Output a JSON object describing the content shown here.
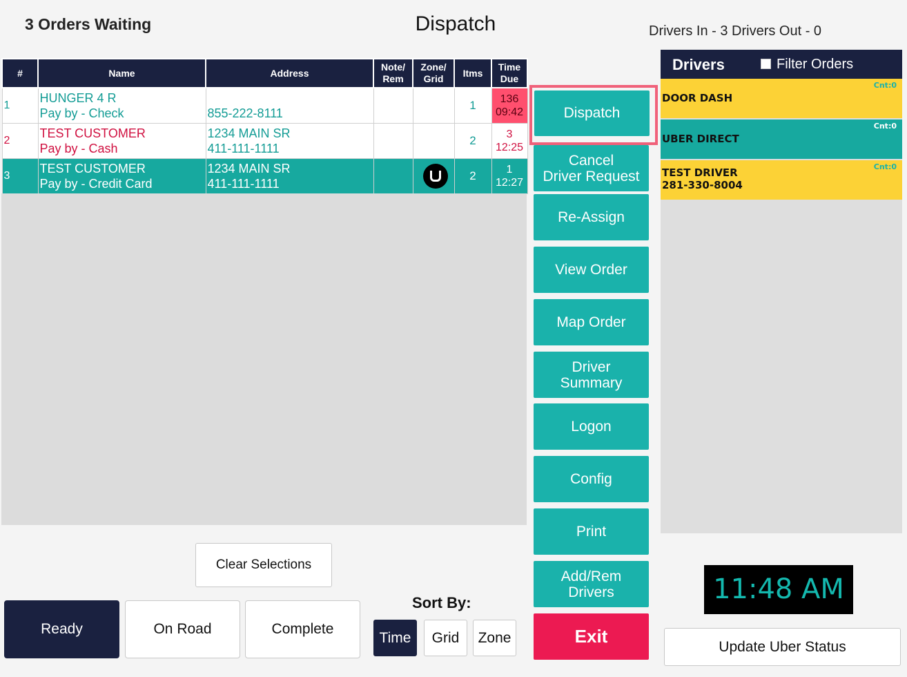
{
  "header": {
    "orders_waiting": "3 Orders Waiting",
    "title": "Dispatch",
    "drivers_count": "Drivers In - 3   Drivers Out - 0"
  },
  "table": {
    "columns": [
      "#",
      "Name",
      "Address",
      "Note/ Rem",
      "Zone/ Grid",
      "Itms",
      "Time Due"
    ],
    "columns_split": {
      "note": [
        "Note/",
        "Rem"
      ],
      "zone": [
        "Zone/",
        "Grid"
      ],
      "time": [
        "Time",
        "Due"
      ]
    },
    "rows": [
      {
        "num": "1",
        "name": "HUNGER 4 R",
        "pay": "Pay by - Check",
        "address": "",
        "phone": "855-222-8111",
        "note": "",
        "zone": "",
        "items": "1",
        "time_top": "136",
        "time_bottom": "09:42"
      },
      {
        "num": "2",
        "name": "TEST CUSTOMER",
        "pay": "Pay by - Cash",
        "address": "1234 MAIN SR",
        "phone": "411-111-1111",
        "note": "",
        "zone": "",
        "items": "2",
        "time_top": "3",
        "time_bottom": "12:25"
      },
      {
        "num": "3",
        "name": "TEST CUSTOMER",
        "pay": "Pay by - Credit Card",
        "address": "1234 MAIN SR",
        "phone": "411-111-1111",
        "note": "",
        "zone_icon": "uber-icon",
        "items": "2",
        "time_top": "1",
        "time_bottom": "12:27"
      }
    ]
  },
  "actions": {
    "dispatch": "Dispatch",
    "cancel_request": [
      "Cancel",
      "Driver Request"
    ],
    "reassign": "Re-Assign",
    "view_order": "View Order",
    "map_order": "Map Order",
    "driver_summary": [
      "Driver",
      "Summary"
    ],
    "logon": "Logon",
    "config": "Config",
    "print": "Print",
    "add_rem_drivers": [
      "Add/Rem",
      "Drivers"
    ],
    "exit": "Exit"
  },
  "drivers": {
    "title": "Drivers",
    "filter_label": "Filter Orders",
    "filter_checked": false,
    "list": [
      {
        "name": "DOOR DASH",
        "phone": "",
        "count": "Cnt:0",
        "color": "#fcd236"
      },
      {
        "name": "UBER DIRECT",
        "phone": "",
        "count": "Cnt:0",
        "color": "#17a99f"
      },
      {
        "name": "TEST DRIVER",
        "phone": "281-330-8004",
        "count": "Cnt:0",
        "color": "#fcd236"
      }
    ]
  },
  "clock": "11:48 AM",
  "update_uber": "Update Uber Status",
  "bottom": {
    "clear": "Clear Selections",
    "ready": "Ready",
    "on_road": "On Road",
    "complete": "Complete",
    "sort_by": "Sort By:",
    "sort_time": "Time",
    "sort_grid": "Grid",
    "sort_zone": "Zone",
    "selected_sort": "Time",
    "selected_status": "Ready"
  },
  "colors": {
    "navy": "#1a2140",
    "teal": "#1ab2ab",
    "exit_red": "#ec1a52",
    "highlight_border": "#f0617a",
    "driver_yellow": "#fcd236"
  }
}
